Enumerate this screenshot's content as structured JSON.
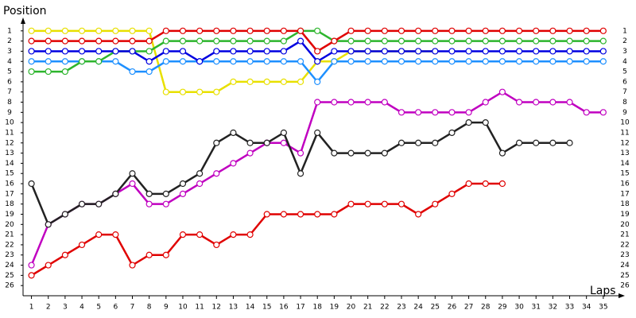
{
  "chart_data": {
    "type": "line",
    "y_label": "Position",
    "x_label": "Laps",
    "xlim": [
      0.5,
      36
    ],
    "ylim": [
      0,
      27
    ],
    "y_inverted": true,
    "grid": false,
    "x": [
      1,
      2,
      3,
      4,
      5,
      6,
      7,
      8,
      9,
      10,
      11,
      12,
      13,
      14,
      15,
      16,
      17,
      18,
      19,
      20,
      21,
      22,
      23,
      24,
      25,
      26,
      27,
      28,
      29,
      30,
      31,
      32,
      33,
      34,
      35
    ],
    "xticks": [
      1,
      2,
      3,
      4,
      5,
      6,
      7,
      8,
      9,
      10,
      11,
      12,
      13,
      14,
      15,
      16,
      17,
      18,
      19,
      20,
      21,
      22,
      23,
      24,
      25,
      26,
      27,
      28,
      29,
      30,
      31,
      32,
      33,
      34,
      35
    ],
    "yticks": [
      1,
      2,
      3,
      4,
      5,
      6,
      7,
      8,
      9,
      10,
      11,
      12,
      13,
      14,
      15,
      16,
      17,
      18,
      19,
      20,
      21,
      22,
      23,
      24,
      25,
      26
    ],
    "series": [
      {
        "color": "#e8e000",
        "values": [
          1,
          1,
          1,
          1,
          1,
          1,
          1,
          1,
          7,
          7,
          7,
          7,
          6,
          6,
          6,
          6,
          6,
          4,
          4,
          3,
          3,
          3,
          3,
          3,
          3,
          null,
          null,
          null,
          null,
          null,
          null,
          null,
          null,
          null,
          null
        ]
      },
      {
        "color": "#1e90ff",
        "values": [
          4,
          4,
          4,
          4,
          4,
          4,
          5,
          5,
          4,
          4,
          4,
          4,
          4,
          4,
          4,
          4,
          4,
          6,
          4,
          4,
          4,
          4,
          4,
          4,
          4,
          4,
          4,
          4,
          4,
          4,
          4,
          4,
          4,
          4,
          4
        ]
      },
      {
        "color": "#c000c0",
        "values": [
          24,
          20,
          19,
          18,
          18,
          17,
          16,
          18,
          18,
          17,
          16,
          15,
          14,
          13,
          12,
          12,
          13,
          8,
          8,
          8,
          8,
          8,
          9,
          9,
          9,
          9,
          9,
          8,
          7,
          8,
          8,
          8,
          8,
          9,
          9
        ]
      },
      {
        "color": "#222222",
        "values": [
          16,
          20,
          19,
          18,
          18,
          17,
          15,
          17,
          17,
          16,
          15,
          12,
          11,
          12,
          12,
          11,
          15,
          11,
          13,
          13,
          13,
          13,
          12,
          12,
          12,
          11,
          10,
          10,
          13,
          12,
          12,
          12,
          12,
          null,
          null
        ]
      },
      {
        "color": "#e00000",
        "values": [
          25,
          24,
          23,
          22,
          21,
          21,
          24,
          23,
          23,
          21,
          21,
          22,
          21,
          21,
          19,
          19,
          19,
          19,
          19,
          18,
          18,
          18,
          18,
          19,
          18,
          17,
          16,
          16,
          16,
          null,
          null,
          null,
          null,
          null,
          null
        ]
      },
      {
        "color": "#2db52d",
        "values": [
          5,
          5,
          5,
          4,
          4,
          3,
          3,
          3,
          2,
          2,
          2,
          2,
          2,
          2,
          2,
          2,
          1,
          1,
          2,
          2,
          2,
          2,
          2,
          2,
          2,
          2,
          2,
          2,
          2,
          2,
          2,
          2,
          2,
          2,
          2
        ]
      },
      {
        "color": "#0000e0",
        "values": [
          3,
          3,
          3,
          3,
          3,
          3,
          3,
          4,
          3,
          3,
          4,
          3,
          3,
          3,
          3,
          3,
          2,
          4,
          3,
          3,
          3,
          3,
          3,
          3,
          3,
          3,
          3,
          3,
          3,
          3,
          3,
          3,
          3,
          3,
          3
        ]
      },
      {
        "color": "#e00000",
        "values": [
          2,
          2,
          2,
          2,
          2,
          2,
          2,
          2,
          1,
          1,
          1,
          1,
          1,
          1,
          1,
          1,
          1,
          3,
          2,
          1,
          1,
          1,
          1,
          1,
          1,
          1,
          1,
          1,
          1,
          1,
          1,
          1,
          1,
          1,
          1
        ]
      }
    ]
  }
}
